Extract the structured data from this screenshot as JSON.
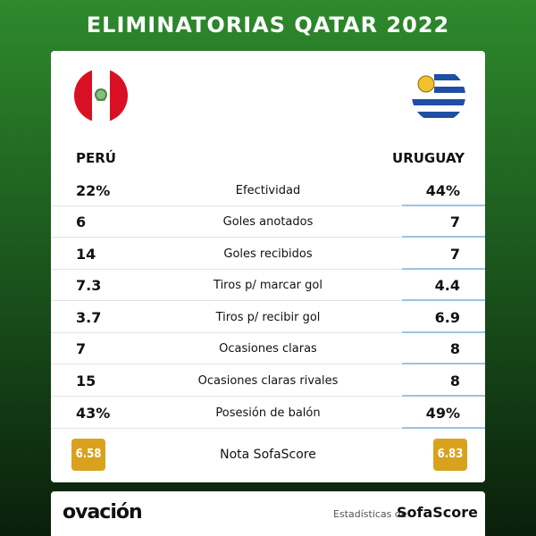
{
  "header": {
    "title": "ELIMINATORIAS QATAR 2022"
  },
  "teams": {
    "left": "PERÚ",
    "right": "URUGUAY"
  },
  "rows": [
    {
      "label": "Efectividad",
      "left": "22%",
      "right": "44%"
    },
    {
      "label": "Goles anotados",
      "left": "6",
      "right": "7"
    },
    {
      "label": "Goles recibidos",
      "left": "14",
      "right": "7"
    },
    {
      "label": "Tiros p/ marcar gol",
      "left": "7.3",
      "right": "4.4"
    },
    {
      "label": "Tiros p/ recibir gol",
      "left": "3.7",
      "right": "6.9"
    },
    {
      "label": "Ocasiones claras",
      "left": "7",
      "right": "8"
    },
    {
      "label": "Ocasiones claras rivales",
      "left": "15",
      "right": "8"
    },
    {
      "label": "Posesión de balón",
      "left": "43%",
      "right": "49%"
    }
  ],
  "rating": {
    "label": "Nota SofaScore",
    "left": "6.58",
    "right": "6.83"
  },
  "footer": {
    "brand": "ovación",
    "credit_prefix": "Estadísticas de",
    "credit_brand": "SofaScore"
  }
}
